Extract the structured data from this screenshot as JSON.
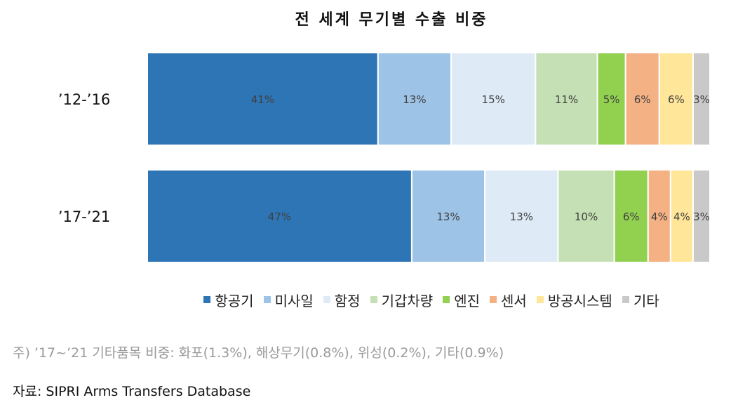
{
  "chart_data": {
    "type": "bar",
    "orientation": "horizontal",
    "stacked": "percent",
    "title": "전 세계 무기별 수출 비중",
    "categories": [
      "’12-’16",
      "’17-’21"
    ],
    "series": [
      {
        "name": "항공기",
        "color": "#2e75b6",
        "values": [
          41,
          47
        ],
        "labels": [
          "41%",
          "47%"
        ]
      },
      {
        "name": "미사일",
        "color": "#9dc3e6",
        "values": [
          13,
          13
        ],
        "labels": [
          "13%",
          "13%"
        ]
      },
      {
        "name": "함정",
        "color": "#deebf7",
        "values": [
          15,
          13
        ],
        "labels": [
          "15%",
          "13%"
        ]
      },
      {
        "name": "기갑차량",
        "color": "#c5e0b4",
        "values": [
          11,
          10
        ],
        "labels": [
          "11%",
          "10%"
        ]
      },
      {
        "name": "엔진",
        "color": "#92d050",
        "values": [
          5,
          6
        ],
        "labels": [
          "5%",
          "6%"
        ]
      },
      {
        "name": "센서",
        "color": "#f4b183",
        "values": [
          6,
          4
        ],
        "labels": [
          "6%",
          "4%"
        ]
      },
      {
        "name": "방공시스템",
        "color": "#ffe699",
        "values": [
          6,
          4
        ],
        "labels": [
          "6%",
          "4%"
        ]
      },
      {
        "name": "기타",
        "color": "#c9c9c9",
        "values": [
          3,
          3
        ],
        "labels": [
          "3%",
          "3%"
        ]
      }
    ],
    "legend": "bottom"
  },
  "footnote": "주) ’17~’21 기타품목 비중: 화포(1.3%), 해상무기(0.8%), 위성(0.2%), 기타(0.9%)",
  "source": "자료: SIPRI Arms Transfers Database"
}
